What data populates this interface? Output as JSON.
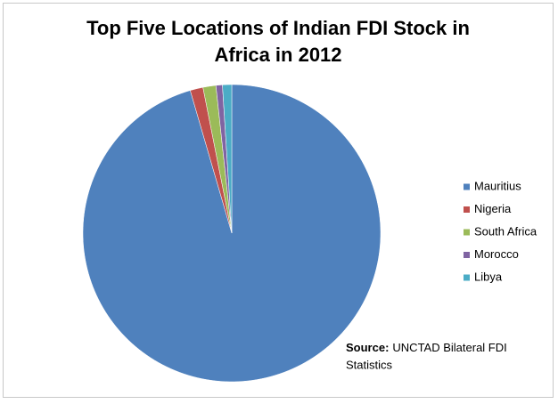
{
  "chart_data": {
    "type": "pie",
    "title_lines": [
      "Top Five Locations of Indian FDI Stock in",
      "Africa in 2012"
    ],
    "categories": [
      "Mauritius",
      "Nigeria",
      "South Africa",
      "Morocco",
      "Libya"
    ],
    "values": [
      95.5,
      1.4,
      1.4,
      0.7,
      1.0
    ],
    "colors": [
      "#4f81bd",
      "#c0504d",
      "#9bbb59",
      "#8064a2",
      "#4bacc6"
    ],
    "source_label": "Source:",
    "source_text_lines": [
      "UNCTAD Bilateral FDI",
      "Statistics"
    ]
  }
}
